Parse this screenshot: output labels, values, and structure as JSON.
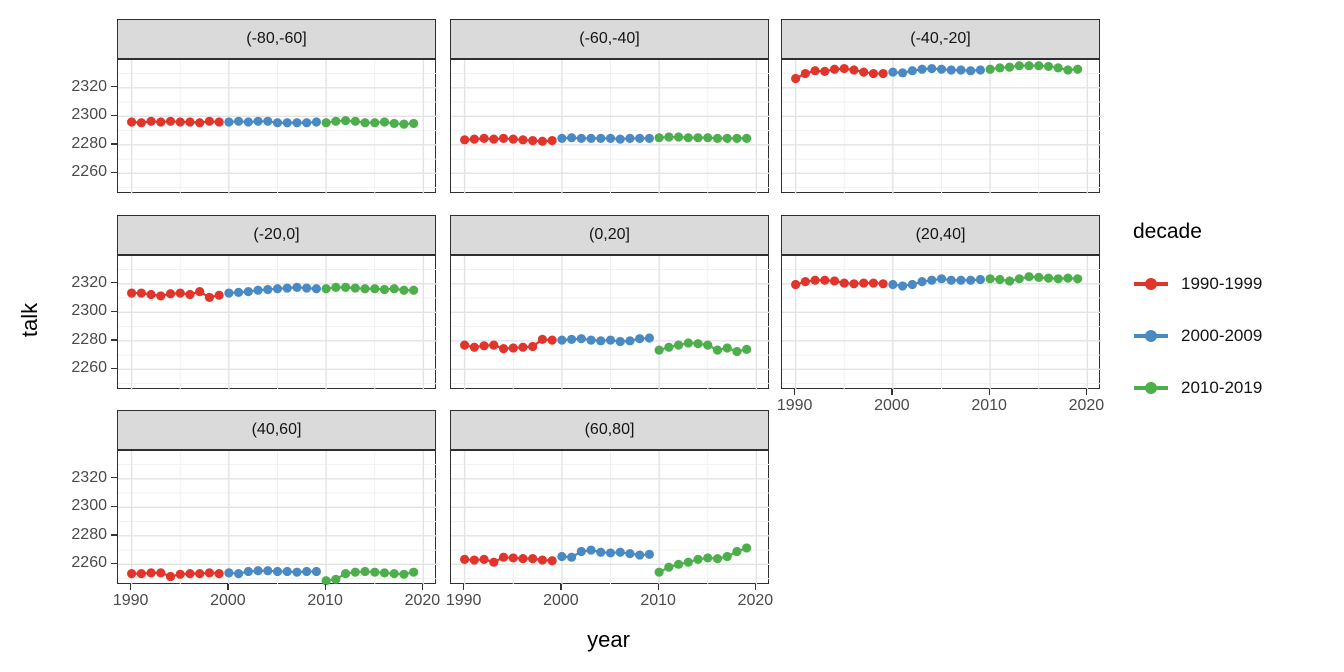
{
  "figure": {
    "y_axis_label": "talk",
    "x_axis_label": "year",
    "legend": {
      "title": "decade",
      "entries": [
        {
          "label": "1990-1999",
          "color": "#E1342B"
        },
        {
          "label": "2000-2009",
          "color": "#4A8AC4"
        },
        {
          "label": "2010-2019",
          "color": "#4DAE4C"
        }
      ]
    }
  },
  "chart_data": {
    "type": "scatter",
    "title": "",
    "xlabel": "year",
    "ylabel": "talk",
    "legend_title": "decade",
    "legend_position": "right",
    "grid": "on",
    "facet_variable": "latitude band",
    "x_ticks": [
      1990,
      2000,
      2010,
      2020
    ],
    "x_minor_ticks": [
      1995,
      2005,
      2015
    ],
    "y_ticks": [
      2260,
      2280,
      2300,
      2320
    ],
    "y_minor_ticks": [
      2250,
      2270,
      2290,
      2310,
      2330
    ],
    "xlim": [
      1988.6,
      2021.4
    ],
    "ylim": [
      2245.5,
      2339.5
    ],
    "years": [
      1990,
      1991,
      1992,
      1993,
      1994,
      1995,
      1996,
      1997,
      1998,
      1999,
      2000,
      2001,
      2002,
      2003,
      2004,
      2005,
      2006,
      2007,
      2008,
      2009,
      2010,
      2011,
      2012,
      2013,
      2014,
      2015,
      2016,
      2017,
      2018,
      2019
    ],
    "decades": [
      {
        "name": "1990-1999",
        "color": "#E1342B"
      },
      {
        "name": "2000-2009",
        "color": "#4A8AC4"
      },
      {
        "name": "2010-2019",
        "color": "#4DAE4C"
      }
    ],
    "panels": [
      {
        "label": "(-80,-60]",
        "values": [
          2296,
          2295.5,
          2296.5,
          2296,
          2296.5,
          2296,
          2296,
          2295.5,
          2296.5,
          2296,
          2296,
          2296.5,
          2296,
          2296.5,
          2296.5,
          2295.5,
          2295.5,
          2295.5,
          2295.5,
          2296,
          2295.5,
          2296.5,
          2297,
          2296.5,
          2295.5,
          2295.5,
          2296,
          2295,
          2294.5,
          2295
        ]
      },
      {
        "label": "(-60,-40]",
        "values": [
          2283.5,
          2284,
          2284.5,
          2284,
          2284.5,
          2284,
          2283.5,
          2283,
          2282.5,
          2283,
          2284.5,
          2285,
          2284.5,
          2284.5,
          2284.5,
          2284.5,
          2284,
          2284.5,
          2284.5,
          2284.5,
          2285,
          2285.5,
          2285.5,
          2285,
          2285,
          2285,
          2284.5,
          2284.5,
          2284.5,
          2284.5
        ]
      },
      {
        "label": "(-40,-20]",
        "values": [
          2326.5,
          2330,
          2332,
          2331.5,
          2333,
          2333.5,
          2332.5,
          2331,
          2330,
          2330,
          2331,
          2330.5,
          2332,
          2333,
          2333.5,
          2333,
          2332.5,
          2332.5,
          2332,
          2332.5,
          2333,
          2334,
          2334.5,
          2335.5,
          2335.5,
          2335.5,
          2335,
          2334,
          2332.5,
          2333
        ]
      },
      {
        "label": "(-20,0]",
        "values": [
          2313.5,
          2313.5,
          2312.5,
          2311.5,
          2313,
          2313.5,
          2312.5,
          2314.5,
          2310.5,
          2312,
          2313.5,
          2314,
          2314.5,
          2315.5,
          2316,
          2316.5,
          2317,
          2317.5,
          2317,
          2316.5,
          2316.5,
          2317.5,
          2317.5,
          2317,
          2316.5,
          2316.5,
          2316,
          2316.5,
          2315.5,
          2315.5
        ]
      },
      {
        "label": "(0,20]",
        "values": [
          2277,
          2275.5,
          2276.5,
          2277,
          2274.5,
          2275,
          2275.5,
          2276,
          2281,
          2280.5,
          2280.5,
          2281,
          2281.5,
          2280.5,
          2280,
          2280.5,
          2279.5,
          2280,
          2281.5,
          2282,
          2273.5,
          2275.5,
          2277,
          2278.5,
          2278,
          2277,
          2273.5,
          2275,
          2272.5,
          2274
        ]
      },
      {
        "label": "(20,40]",
        "values": [
          2319.5,
          2321.5,
          2322.5,
          2322.5,
          2322,
          2320.5,
          2320,
          2320.5,
          2320.5,
          2320,
          2319.5,
          2318.5,
          2319.5,
          2321.5,
          2322.5,
          2323.5,
          2322.5,
          2322.5,
          2322.5,
          2323,
          2323.5,
          2323,
          2322,
          2323.5,
          2325,
          2324.5,
          2324,
          2323.5,
          2324,
          2323.5
        ]
      },
      {
        "label": "(40,60]",
        "values": [
          2253.5,
          2253.5,
          2254,
          2254,
          2251.5,
          2253,
          2253.5,
          2253.5,
          2254,
          2253.5,
          2254,
          2253.5,
          2255,
          2255.5,
          2255.5,
          2255,
          2255,
          2254.5,
          2255,
          2255,
          2248.5,
          2249.5,
          2253.5,
          2254.5,
          2255,
          2254.5,
          2254,
          2253.5,
          2253,
          2254.5
        ]
      },
      {
        "label": "(60,80]",
        "values": [
          2263.5,
          2263,
          2263.5,
          2261.5,
          2265,
          2264.5,
          2264,
          2264,
          2263,
          2262.5,
          2265.5,
          2265,
          2269,
          2270,
          2268.5,
          2268,
          2268.5,
          2267.5,
          2266.5,
          2267,
          2254.5,
          2258,
          2260,
          2261.5,
          2263.5,
          2264.5,
          2264,
          2265.5,
          2269,
          2271.5
        ]
      }
    ]
  }
}
